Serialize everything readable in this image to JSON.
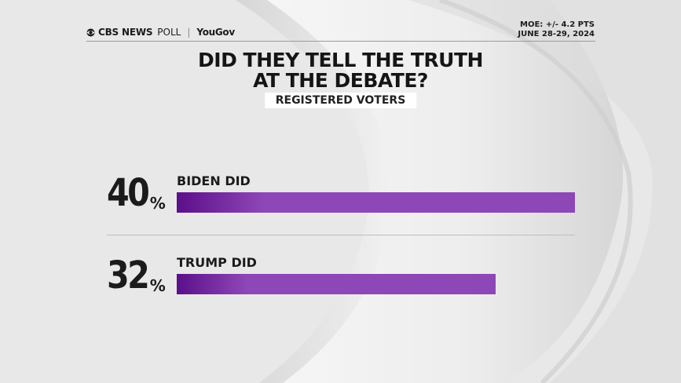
{
  "header": {
    "brand": "CBS NEWS",
    "poll": "POLL",
    "separator": "|",
    "partner": "YouGov",
    "moe": "MOE: +/- 4.2 PTS",
    "dates": "JUNE 28-29, 2024"
  },
  "chart_data": {
    "type": "bar",
    "orientation": "horizontal",
    "title": "DID THEY TELL THE TRUTH AT THE DEBATE?",
    "title_lines": [
      "DID THEY TELL THE TRUTH",
      "AT THE DEBATE?"
    ],
    "subtitle": "REGISTERED VOTERS",
    "categories": [
      "BIDEN DID",
      "TRUMP DID"
    ],
    "values": [
      40,
      32
    ],
    "value_labels": [
      "40",
      "32"
    ],
    "unit": "%",
    "xlim": [
      0,
      40
    ],
    "bar_color": "#8e47b7",
    "bar_color_start": "#5b0f8a"
  }
}
